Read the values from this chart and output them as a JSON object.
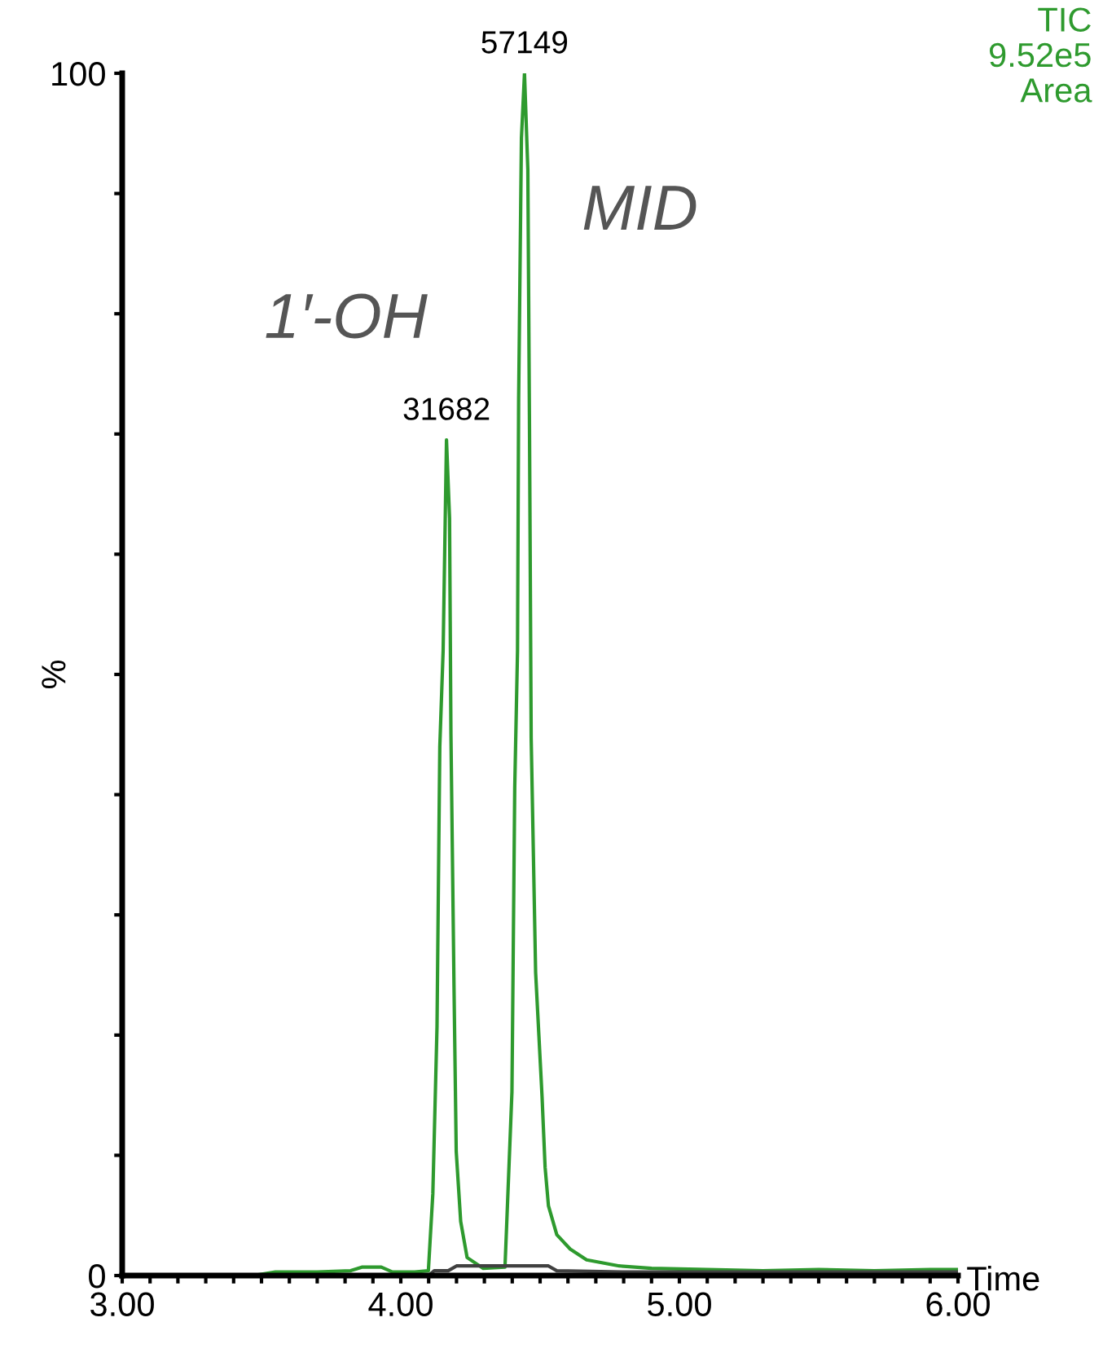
{
  "chart_data": {
    "type": "line",
    "xlabel": "Time",
    "ylabel": "%",
    "xlim": [
      3.0,
      6.0
    ],
    "ylim": [
      0,
      100
    ],
    "xticks": [
      {
        "value": 3.0,
        "label": "3.00"
      },
      {
        "value": 3.1,
        "label": null
      },
      {
        "value": 3.2,
        "label": null
      },
      {
        "value": 3.3,
        "label": null
      },
      {
        "value": 3.4,
        "label": null
      },
      {
        "value": 3.5,
        "label": null
      },
      {
        "value": 3.6,
        "label": null
      },
      {
        "value": 3.7,
        "label": null
      },
      {
        "value": 3.8,
        "label": null
      },
      {
        "value": 3.9,
        "label": null
      },
      {
        "value": 4.0,
        "label": "4.00"
      },
      {
        "value": 4.1,
        "label": null
      },
      {
        "value": 4.2,
        "label": null
      },
      {
        "value": 4.3,
        "label": null
      },
      {
        "value": 4.4,
        "label": null
      },
      {
        "value": 4.5,
        "label": null
      },
      {
        "value": 4.6,
        "label": null
      },
      {
        "value": 4.7,
        "label": null
      },
      {
        "value": 4.8,
        "label": null
      },
      {
        "value": 4.9,
        "label": null
      },
      {
        "value": 5.0,
        "label": "5.00"
      },
      {
        "value": 5.1,
        "label": null
      },
      {
        "value": 5.2,
        "label": null
      },
      {
        "value": 5.3,
        "label": null
      },
      {
        "value": 5.4,
        "label": null
      },
      {
        "value": 5.5,
        "label": null
      },
      {
        "value": 5.6,
        "label": null
      },
      {
        "value": 5.7,
        "label": null
      },
      {
        "value": 5.8,
        "label": null
      },
      {
        "value": 5.9,
        "label": null
      },
      {
        "value": 6.0,
        "label": "6.00"
      }
    ],
    "yticks": [
      0,
      {
        "value": 10,
        "label": null
      },
      {
        "value": 20,
        "label": null
      },
      {
        "value": 30,
        "label": null
      },
      {
        "value": 40,
        "label": null
      },
      {
        "value": 50,
        "label": null
      },
      {
        "value": 60,
        "label": null
      },
      {
        "value": 70,
        "label": null
      },
      {
        "value": 80,
        "label": null
      },
      {
        "value": 90,
        "label": null
      },
      100
    ],
    "grid": false,
    "legend": false,
    "series": [
      {
        "color": "#2e9a2e",
        "x": [
          3.0,
          3.47,
          3.55,
          3.7,
          3.82,
          3.86,
          3.93,
          3.97,
          4.05,
          4.099,
          4.115,
          4.13,
          4.14,
          4.152,
          4.164,
          4.175,
          4.18,
          4.191,
          4.199,
          4.215,
          4.238,
          4.296,
          4.374,
          4.399,
          4.409,
          4.419,
          4.423,
          4.433,
          4.444,
          4.456,
          4.462,
          4.468,
          4.484,
          4.507,
          4.518,
          4.53,
          4.56,
          4.608,
          4.667,
          4.784,
          4.9,
          5.1,
          5.3,
          5.5,
          5.7,
          5.9,
          6.0
        ],
        "values": [
          0,
          0,
          0.3,
          0.3,
          0.4,
          0.7,
          0.7,
          0.3,
          0.3,
          0.4,
          6.8,
          20.7,
          44,
          52,
          69.5,
          63,
          45,
          24,
          10.3,
          4.5,
          1.5,
          0.6,
          0.7,
          15.3,
          40.6,
          52,
          73,
          94.6,
          100,
          92,
          70.4,
          44.7,
          25.2,
          14.9,
          9,
          5.8,
          3.4,
          2.2,
          1.3,
          0.8,
          0.6,
          0.5,
          0.4,
          0.5,
          0.4,
          0.5,
          0.5
        ]
      },
      {
        "color": "#404040",
        "x": [
          3.0,
          4.1,
          4.12,
          4.17,
          4.2,
          4.35,
          4.53,
          4.56,
          4.8,
          6.0
        ],
        "values": [
          0,
          0,
          0.4,
          0.4,
          0.8,
          0.8,
          0.8,
          0.4,
          0.3,
          0.3
        ]
      }
    ],
    "annotations": [
      {
        "text": "31682",
        "x": 4.164,
        "y": 69.5
      },
      {
        "text": "57149",
        "x": 4.444,
        "y": 100
      },
      "1′-OH",
      "MID",
      "TIC\n9.52e5\nArea"
    ]
  }
}
